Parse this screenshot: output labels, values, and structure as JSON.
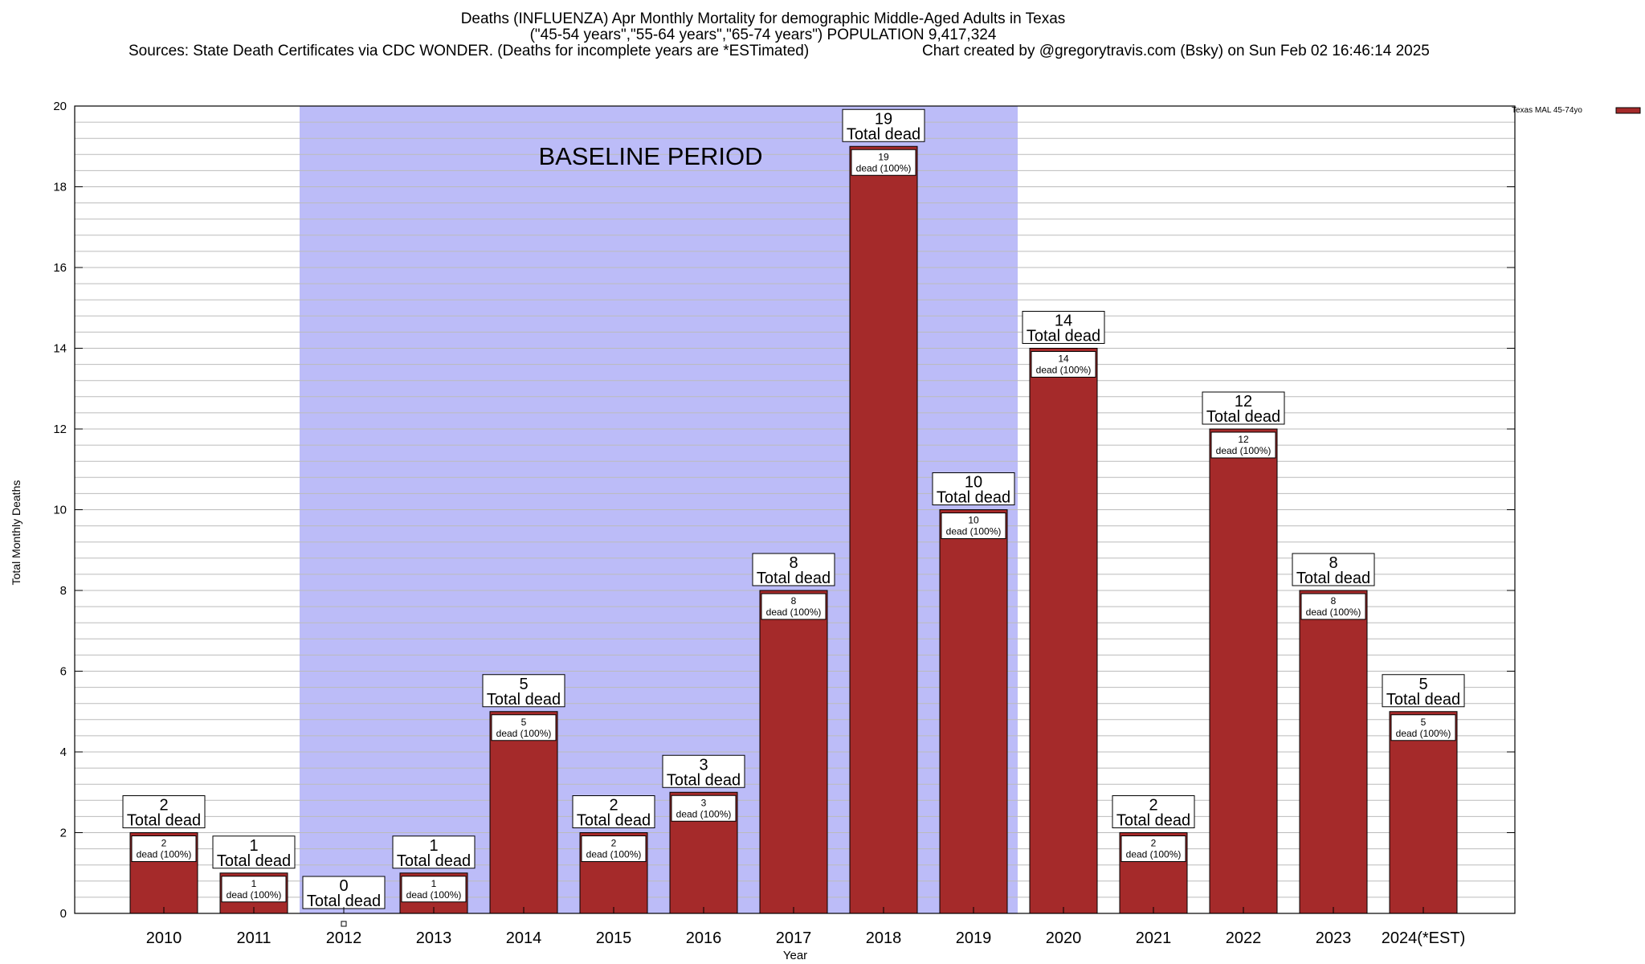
{
  "title": {
    "line1": "Deaths (INFLUENZA) Apr Monthly Mortality for demographic Middle-Aged Adults in Texas",
    "line2": "(\"45-54 years\",\"55-64 years\",\"65-74 years\") POPULATION 9,417,324",
    "line3_source": "Sources: State Death Certificates via CDC WONDER. (Deaths for incomplete years are *ESTimated)",
    "line3_credit": "Chart created by @gregorytravis.com (Bsky) on Sun Feb 02 16:46:14 2025"
  },
  "colors": {
    "bar": "#a52a2a",
    "baseline_band": "#bcbcf8",
    "grid": "#bbbbbb"
  },
  "chart_data": {
    "type": "bar",
    "categories": [
      "2010",
      "2011",
      "2012",
      "2013",
      "2014",
      "2015",
      "2016",
      "2017",
      "2018",
      "2019",
      "2020",
      "2021",
      "2022",
      "2023",
      "2024(*EST)"
    ],
    "series": [
      {
        "name": "Texas MAL 45-74yo",
        "values": [
          2,
          1,
          0,
          1,
          5,
          2,
          3,
          8,
          19,
          10,
          14,
          2,
          12,
          8,
          5
        ]
      }
    ],
    "xlabel": "Year",
    "ylabel": "Total Monthly Deaths",
    "ylim": [
      0,
      20
    ],
    "yticks": [
      0,
      2,
      4,
      6,
      8,
      10,
      12,
      14,
      16,
      18,
      20
    ],
    "minor_step": 0.4,
    "grid": true,
    "legend_position": "top-right",
    "baseline": {
      "label": "BASELINE PERIOD",
      "start_category": "2012",
      "end_category": "2019"
    },
    "total_label_suffix": "Total dead",
    "inner_label_suffix": "dead (100%)"
  }
}
